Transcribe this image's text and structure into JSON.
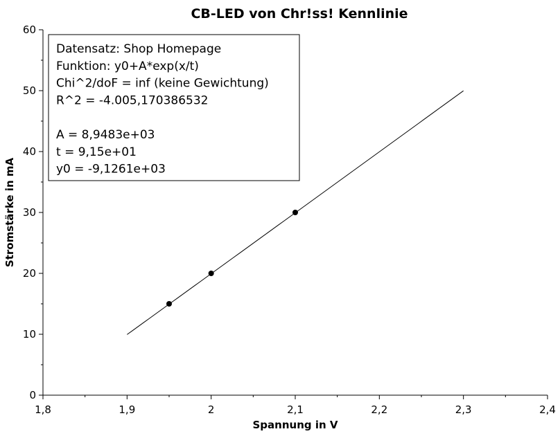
{
  "chart_data": {
    "type": "scatter",
    "title": "CB-LED von Chr!ss! Kennlinie",
    "xlabel": "Spannung in V",
    "ylabel": "Stromstärke in mA",
    "xlim": [
      1.8,
      2.4
    ],
    "ylim": [
      0,
      60
    ],
    "x_ticks": [
      "1,8",
      "1,9",
      "2",
      "2,1",
      "2,2",
      "2,3",
      "2,4"
    ],
    "y_ticks": [
      "0",
      "10",
      "20",
      "30",
      "40",
      "50",
      "60"
    ],
    "grid": false,
    "points": {
      "x": [
        1.95,
        2.0,
        2.1
      ],
      "y": [
        15,
        20,
        30
      ]
    },
    "fit": {
      "x_start": 1.9,
      "x_end": 2.3,
      "A": 8948.3,
      "t": 91.5,
      "y0": -9126.1
    },
    "legend_placement": "top-left",
    "legend_lines": [
      "Datensatz: Shop Homepage",
      "Funktion: y0+A*exp(x/t)",
      "Chi^2/doF = inf (keine Gewichtung)",
      "R^2 = -4.005,170386532",
      "",
      "A = 8,9483e+03",
      "t = 9,15e+01",
      "y0 = -9,1261e+03"
    ]
  }
}
